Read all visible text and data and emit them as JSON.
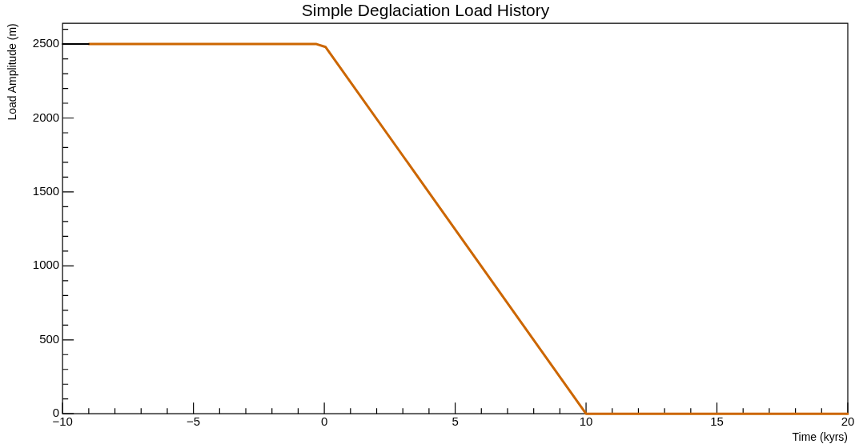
{
  "chart_data": {
    "type": "line",
    "title": "Simple Deglaciation Load History",
    "xlabel": "Time (kyrs)",
    "ylabel": "Load Amplitude (m)",
    "xlim": [
      -10,
      20
    ],
    "xticks": [
      {
        "value": -10,
        "label": "−10"
      },
      {
        "value": -5,
        "label": "−5"
      },
      0,
      5,
      10,
      15,
      20
    ],
    "ylim": [
      0,
      2640
    ],
    "yticks": [
      0,
      500,
      1000,
      1500,
      2000,
      2500
    ],
    "grid": false,
    "legend": false,
    "marker": "none",
    "line_style": "solid",
    "series": [
      {
        "color": "#000000",
        "x": [
          -10,
          -9
        ],
        "values": [
          2500,
          2500
        ]
      },
      {
        "color": "#cc6600",
        "x": [
          -9,
          -0.3,
          0.05,
          10,
          20
        ],
        "values": [
          2500,
          2500,
          2480,
          0,
          0
        ]
      }
    ]
  }
}
